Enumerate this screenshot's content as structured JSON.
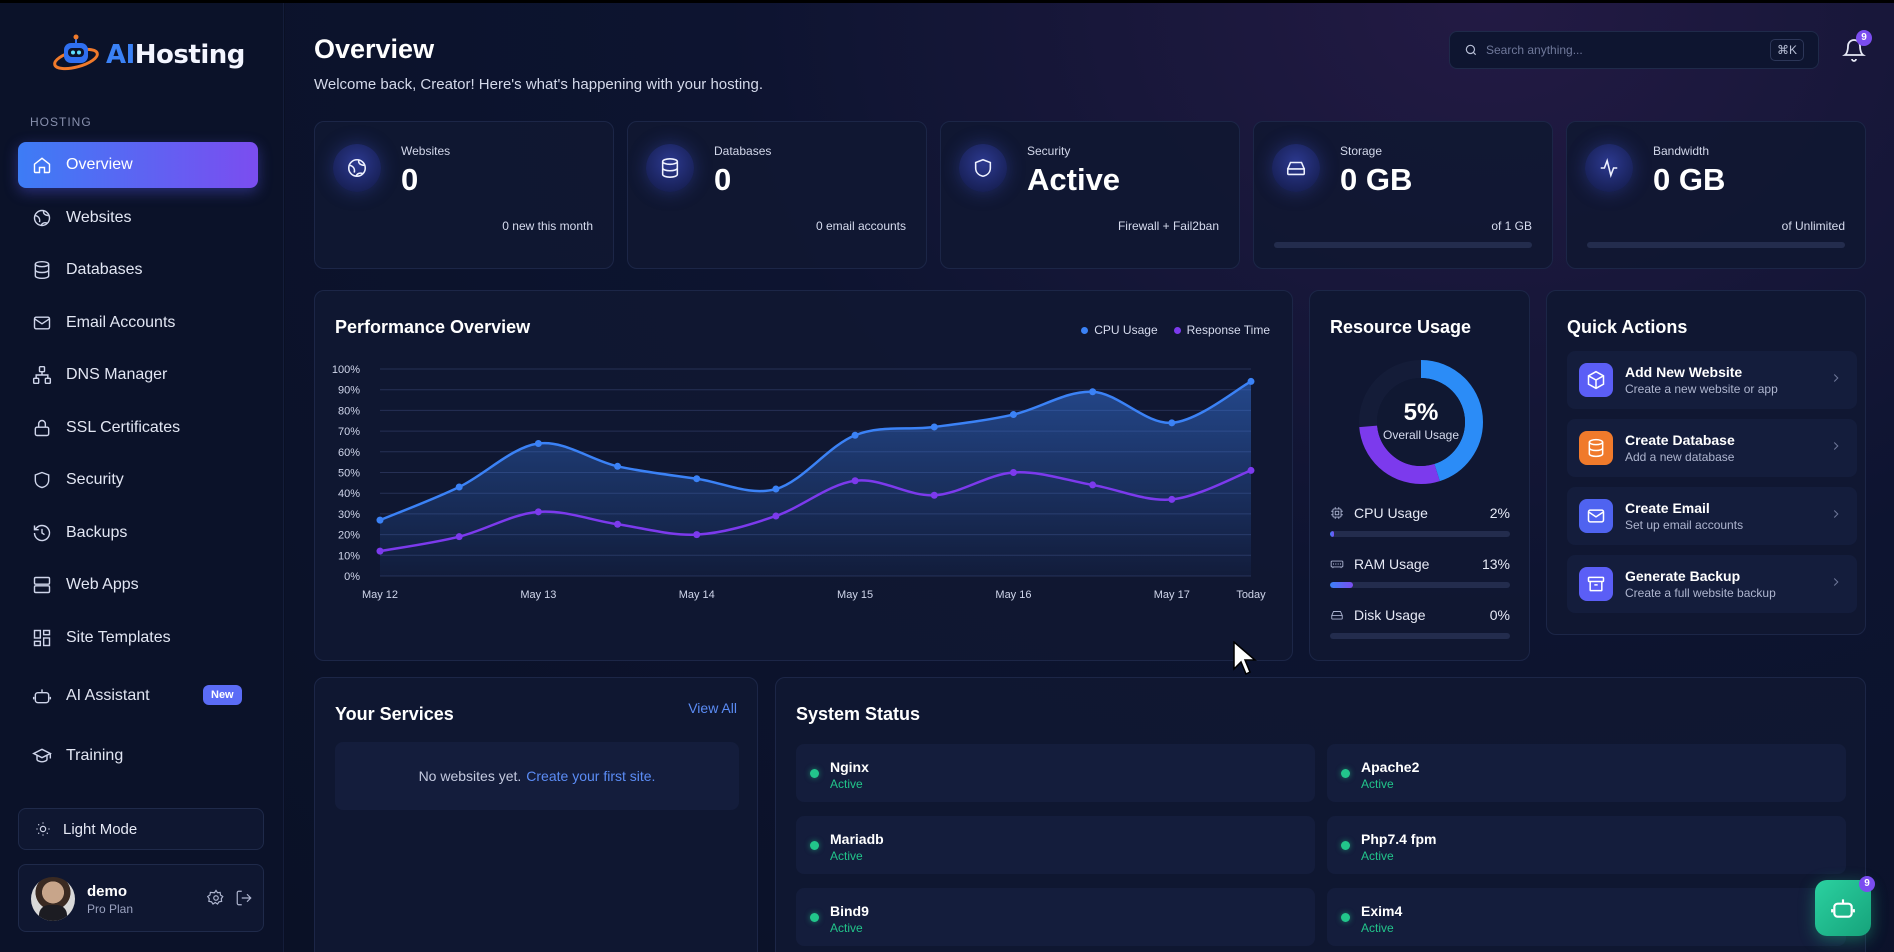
{
  "brand": {
    "name_part1": "AI",
    "name_part2": "Hosting"
  },
  "sidebar": {
    "section_label": "HOSTING",
    "items": [
      {
        "label": "Overview",
        "icon": "home-icon"
      },
      {
        "label": "Websites",
        "icon": "globe-icon"
      },
      {
        "label": "Databases",
        "icon": "database-icon"
      },
      {
        "label": "Email Accounts",
        "icon": "mail-icon"
      },
      {
        "label": "DNS Manager",
        "icon": "network-icon"
      },
      {
        "label": "SSL Certificates",
        "icon": "lock-icon"
      },
      {
        "label": "Security",
        "icon": "shield-icon"
      },
      {
        "label": "Backups",
        "icon": "history-icon"
      },
      {
        "label": "Web Apps",
        "icon": "server-icon"
      },
      {
        "label": "Site Templates",
        "icon": "templates-icon"
      },
      {
        "label": "AI Assistant",
        "icon": "robot-icon",
        "badge": "New"
      },
      {
        "label": "Training",
        "icon": "graduation-cap-icon"
      }
    ],
    "light_mode_label": "Light Mode",
    "user": {
      "name": "demo",
      "plan": "Pro Plan"
    }
  },
  "header": {
    "title": "Overview",
    "subtitle": "Welcome back, Creator! Here's what's happening with your hosting.",
    "search_placeholder": "Search anything...",
    "search_shortcut": "⌘K",
    "notification_count": "9"
  },
  "stats": [
    {
      "label": "Websites",
      "value": "0",
      "note": "0 new this month",
      "icon": "globe-icon"
    },
    {
      "label": "Databases",
      "value": "0",
      "note": "0 email accounts",
      "icon": "database-icon"
    },
    {
      "label": "Security",
      "value": "Active",
      "note": "Firewall + Fail2ban",
      "icon": "shield-icon"
    },
    {
      "label": "Storage",
      "value": "0 GB",
      "note": "of 1 GB",
      "icon": "hard-drive-icon",
      "progress": 0
    },
    {
      "label": "Bandwidth",
      "value": "0 GB",
      "note": "of Unlimited",
      "icon": "activity-icon",
      "progress": 0
    }
  ],
  "performance": {
    "title": "Performance Overview",
    "legend": [
      "CPU Usage",
      "Response Time"
    ]
  },
  "chart_data": {
    "type": "line",
    "title": "Performance Overview",
    "x": [
      "May 12",
      "",
      "May 13",
      "",
      "May 14",
      "",
      "May 15",
      "",
      "May 16",
      "",
      "May 17",
      "Today"
    ],
    "x_tick_labels": [
      "May 12",
      "May 13",
      "May 14",
      "May 15",
      "May 16",
      "May 17",
      "Today"
    ],
    "y_tick_labels": [
      "0%",
      "10%",
      "20%",
      "30%",
      "40%",
      "50%",
      "60%",
      "70%",
      "80%",
      "90%",
      "100%"
    ],
    "ylim": [
      0,
      100
    ],
    "grid": true,
    "legend_position": "top-right",
    "series": [
      {
        "name": "CPU Usage",
        "color": "#3b82f6",
        "values": [
          27,
          43,
          64,
          53,
          47,
          42,
          68,
          72,
          78,
          89,
          74,
          94
        ]
      },
      {
        "name": "Response Time",
        "color": "#7c3aed",
        "values": [
          12,
          19,
          31,
          25,
          20,
          29,
          46,
          39,
          50,
          44,
          37,
          51
        ]
      }
    ]
  },
  "resource_usage": {
    "title": "Resource Usage",
    "overall_percent": "5%",
    "overall_label": "Overall Usage",
    "rows": [
      {
        "label": "CPU Usage",
        "percent_text": "2%",
        "value": 2,
        "icon": "cpu-icon"
      },
      {
        "label": "RAM Usage",
        "percent_text": "13%",
        "value": 13,
        "icon": "memory-icon"
      },
      {
        "label": "Disk Usage",
        "percent_text": "0%",
        "value": 0,
        "icon": "hard-drive-icon"
      }
    ]
  },
  "quick_actions": {
    "title": "Quick Actions",
    "items": [
      {
        "title": "Add New Website",
        "subtitle": "Create a new website or app",
        "icon": "cube-icon",
        "color": "#5b5ef6"
      },
      {
        "title": "Create Database",
        "subtitle": "Add a new database",
        "icon": "database-icon",
        "color": "#f07a2b"
      },
      {
        "title": "Create Email",
        "subtitle": "Set up email accounts",
        "icon": "mail-icon",
        "color": "#4f63f0"
      },
      {
        "title": "Generate Backup",
        "subtitle": "Create a full website backup",
        "icon": "archive-icon",
        "color": "#5b5ef6"
      }
    ]
  },
  "services": {
    "title": "Your Services",
    "view_all": "View All",
    "empty_text": "No websites yet.",
    "empty_link": "Create your first site."
  },
  "system_status": {
    "title": "System Status",
    "items": [
      {
        "name": "Nginx",
        "state": "Active"
      },
      {
        "name": "Apache2",
        "state": "Active"
      },
      {
        "name": "Mariadb",
        "state": "Active"
      },
      {
        "name": "Php7.4 fpm",
        "state": "Active"
      },
      {
        "name": "Bind9",
        "state": "Active"
      },
      {
        "name": "Exim4",
        "state": "Active"
      }
    ]
  },
  "assistant_fab": {
    "badge": "9",
    "icon": "robot-icon"
  }
}
